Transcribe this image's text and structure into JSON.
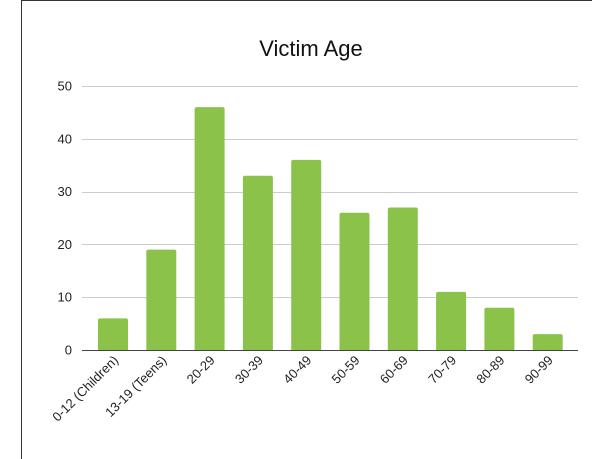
{
  "chart_data": {
    "type": "bar",
    "title": "Victim Age",
    "xlabel": "",
    "ylabel": "",
    "categories": [
      "0-12 (Children)",
      "13-19 (Teens)",
      "20-29",
      "30-39",
      "40-49",
      "50-59",
      "60-69",
      "70-79",
      "80-89",
      "90-99"
    ],
    "values": [
      6,
      19,
      46,
      33,
      36,
      26,
      27,
      11,
      8,
      3
    ],
    "ylim": [
      0,
      50
    ],
    "yticks": [
      0,
      10,
      20,
      30,
      40,
      50
    ],
    "grid": true,
    "legend": "none",
    "colors": {
      "bar": "#8bc34a",
      "grid": "#cccccc",
      "axis": "#444444",
      "frame": "#333333"
    }
  }
}
